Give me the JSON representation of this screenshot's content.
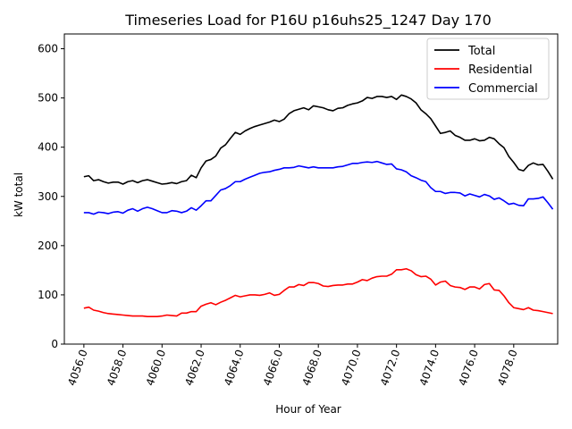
{
  "chart_data": {
    "type": "line",
    "title": "Timeseries Load for P16U p16uhs25_1247  Day 170",
    "xlabel": "Hour of Year",
    "ylabel": "kW total",
    "xlim": [
      4055.0,
      4080.25
    ],
    "ylim": [
      0,
      630
    ],
    "x_start": 4056.0,
    "x_step": 0.25,
    "xticks": [
      4056,
      4058,
      4060,
      4062,
      4064,
      4066,
      4068,
      4070,
      4072,
      4074,
      4076,
      4078
    ],
    "xtick_labels": [
      "4056.0",
      "4058.0",
      "4060.0",
      "4062.0",
      "4064.0",
      "4066.0",
      "4068.0",
      "4070.0",
      "4072.0",
      "4074.0",
      "4076.0",
      "4078.0"
    ],
    "yticks": [
      0,
      100,
      200,
      300,
      400,
      500,
      600
    ],
    "ytick_labels": [
      "0",
      "100",
      "200",
      "300",
      "400",
      "500",
      "600"
    ],
    "grid": false,
    "legend_position": "top-right",
    "series": [
      {
        "name": "Total",
        "color": "#000000",
        "values": [
          340,
          342,
          332,
          334,
          330,
          327,
          329,
          329,
          325,
          330,
          332,
          328,
          332,
          334,
          331,
          328,
          325,
          326,
          328,
          326,
          330,
          332,
          343,
          338,
          358,
          372,
          375,
          382,
          398,
          405,
          418,
          430,
          426,
          433,
          438,
          442,
          445,
          448,
          451,
          455,
          452,
          457,
          468,
          474,
          477,
          480,
          476,
          484,
          482,
          480,
          476,
          474,
          479,
          480,
          485,
          488,
          490,
          494,
          501,
          499,
          503,
          503,
          501,
          503,
          497,
          506,
          503,
          498,
          490,
          476,
          468,
          458,
          443,
          428,
          430,
          433,
          424,
          420,
          414,
          414,
          417,
          413,
          414,
          420,
          417,
          407,
          399,
          381,
          369,
          355,
          352,
          363,
          368,
          364,
          365,
          351,
          335
        ]
      },
      {
        "name": "Residential",
        "color": "#ff0000",
        "values": [
          73,
          75,
          69,
          67,
          64,
          62,
          61,
          60,
          59,
          58,
          57,
          57,
          57,
          56,
          56,
          56,
          57,
          59,
          58,
          57,
          63,
          63,
          66,
          66,
          77,
          81,
          84,
          80,
          85,
          89,
          94,
          99,
          96,
          98,
          100,
          100,
          99,
          101,
          104,
          99,
          101,
          109,
          116,
          116,
          121,
          119,
          125,
          125,
          123,
          118,
          117,
          119,
          120,
          120,
          122,
          122,
          126,
          131,
          129,
          134,
          137,
          138,
          138,
          142,
          151,
          151,
          153,
          149,
          141,
          137,
          138,
          132,
          120,
          126,
          128,
          119,
          116,
          115,
          111,
          116,
          116,
          112,
          121,
          123,
          110,
          109,
          98,
          84,
          74,
          72,
          70,
          74,
          69,
          68,
          66,
          64,
          62
        ]
      },
      {
        "name": "Commercial",
        "color": "#0000ff",
        "values": [
          267,
          267,
          264,
          268,
          267,
          265,
          268,
          269,
          266,
          272,
          275,
          270,
          275,
          278,
          275,
          271,
          267,
          267,
          271,
          270,
          267,
          270,
          277,
          272,
          281,
          291,
          291,
          302,
          313,
          316,
          322,
          330,
          330,
          335,
          339,
          343,
          347,
          349,
          350,
          353,
          355,
          358,
          358,
          359,
          362,
          360,
          358,
          360,
          358,
          358,
          358,
          358,
          360,
          361,
          364,
          367,
          367,
          369,
          370,
          369,
          371,
          368,
          365,
          366,
          356,
          354,
          350,
          342,
          338,
          333,
          330,
          318,
          310,
          310,
          306,
          308,
          308,
          307,
          301,
          305,
          302,
          299,
          304,
          301,
          294,
          297,
          291,
          284,
          286,
          282,
          281,
          295,
          295,
          296,
          299,
          287,
          274
        ]
      }
    ]
  }
}
